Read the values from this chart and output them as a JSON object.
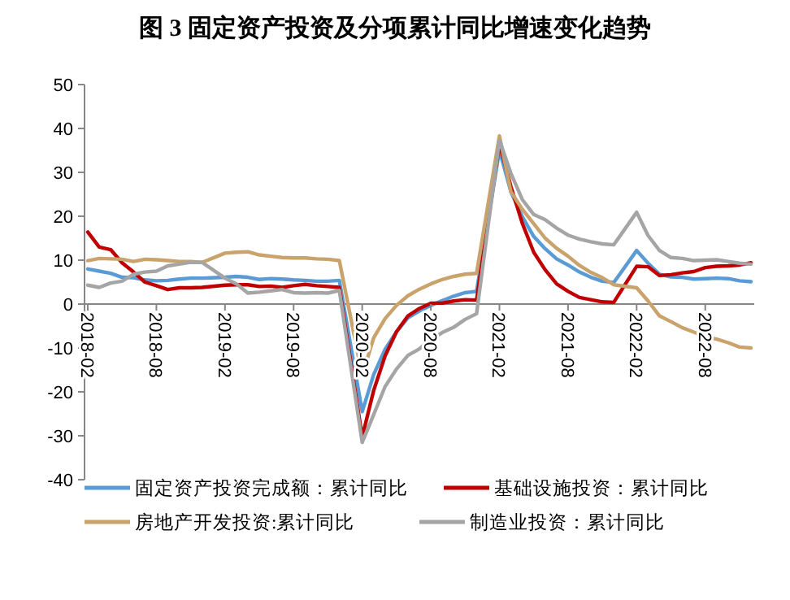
{
  "chart_data": {
    "type": "line",
    "title": "图 3  固定资产投资及分项累计同比增速变化趋势",
    "x": [
      "2018-02",
      "2018-03",
      "2018-04",
      "2018-05",
      "2018-06",
      "2018-07",
      "2018-08",
      "2018-09",
      "2018-10",
      "2018-11",
      "2018-12",
      "2019-02",
      "2019-03",
      "2019-04",
      "2019-05",
      "2019-06",
      "2019-07",
      "2019-08",
      "2019-09",
      "2019-10",
      "2019-11",
      "2019-12",
      "2020-02",
      "2020-03",
      "2020-04",
      "2020-05",
      "2020-06",
      "2020-07",
      "2020-08",
      "2020-09",
      "2020-10",
      "2020-11",
      "2020-12",
      "2021-02",
      "2021-03",
      "2021-04",
      "2021-05",
      "2021-06",
      "2021-07",
      "2021-08",
      "2021-09",
      "2021-10",
      "2021-11",
      "2021-12",
      "2022-02",
      "2022-03",
      "2022-04",
      "2022-05",
      "2022-06",
      "2022-07",
      "2022-08",
      "2022-09",
      "2022-10",
      "2022-11",
      "2022-12"
    ],
    "series": [
      {
        "name": "固定资产投资完成额：累计同比",
        "color": "#5b9bd5",
        "values": [
          8.0,
          7.5,
          7.0,
          6.1,
          6.0,
          5.5,
          5.3,
          5.4,
          5.7,
          5.9,
          5.9,
          6.1,
          6.3,
          6.1,
          5.6,
          5.8,
          5.7,
          5.5,
          5.4,
          5.2,
          5.2,
          5.4,
          -24.5,
          -16.1,
          -10.3,
          -6.3,
          -3.1,
          -1.6,
          -0.3,
          0.8,
          1.8,
          2.6,
          2.9,
          35.0,
          25.6,
          19.9,
          15.4,
          12.6,
          10.3,
          8.9,
          7.3,
          6.1,
          5.2,
          4.9,
          12.2,
          9.3,
          6.8,
          6.2,
          6.1,
          5.7,
          5.8,
          5.9,
          5.8,
          5.3,
          5.1
        ]
      },
      {
        "name": "基础设施投资：累计同比",
        "color": "#c00000",
        "values": [
          16.4,
          13.0,
          12.4,
          9.4,
          7.3,
          5.0,
          4.2,
          3.3,
          3.7,
          3.7,
          3.8,
          4.3,
          4.4,
          4.4,
          4.0,
          4.1,
          3.8,
          4.2,
          4.5,
          4.2,
          4.0,
          3.8,
          -30.3,
          -19.7,
          -11.8,
          -6.3,
          -2.7,
          -1.0,
          0.2,
          0.2,
          0.7,
          1.0,
          0.9,
          36.6,
          26.8,
          18.4,
          11.8,
          7.8,
          4.6,
          2.9,
          1.5,
          1.0,
          0.5,
          0.4,
          8.6,
          8.5,
          6.5,
          6.7,
          7.1,
          7.4,
          8.3,
          8.6,
          8.7,
          8.9,
          9.4
        ]
      },
      {
        "name": "房地产开发投资:累计同比",
        "color": "#c9a36b",
        "values": [
          9.9,
          10.4,
          10.3,
          10.2,
          9.7,
          10.2,
          10.1,
          9.9,
          9.7,
          9.7,
          9.5,
          11.6,
          11.8,
          11.9,
          11.2,
          10.9,
          10.6,
          10.5,
          10.5,
          10.3,
          10.2,
          9.9,
          -16.3,
          -7.7,
          -3.3,
          -0.3,
          1.9,
          3.4,
          4.6,
          5.6,
          6.3,
          6.8,
          7.0,
          38.3,
          25.6,
          21.6,
          18.3,
          15.0,
          12.7,
          10.9,
          8.8,
          7.2,
          6.0,
          4.4,
          3.7,
          0.7,
          -2.7,
          -4.0,
          -5.4,
          -6.4,
          -7.4,
          -8.0,
          -8.8,
          -9.8,
          -10.0
        ]
      },
      {
        "name": "制造业投资：累计同比",
        "color": "#a5a5a5",
        "values": [
          4.3,
          3.8,
          4.8,
          5.2,
          6.8,
          7.3,
          7.5,
          8.7,
          9.1,
          9.5,
          9.5,
          5.9,
          4.6,
          2.5,
          2.7,
          3.0,
          3.3,
          2.6,
          2.5,
          2.6,
          2.5,
          3.1,
          -31.5,
          -25.2,
          -18.8,
          -14.8,
          -11.7,
          -10.2,
          -8.1,
          -6.5,
          -5.3,
          -3.5,
          -2.2,
          37.3,
          29.8,
          23.8,
          20.4,
          19.2,
          17.3,
          15.7,
          14.8,
          14.2,
          13.7,
          13.5,
          20.9,
          15.6,
          12.2,
          10.6,
          10.4,
          9.9,
          10.0,
          10.1,
          9.7,
          9.3,
          9.1
        ]
      }
    ],
    "xlim": [
      "2018-02",
      "2022-12"
    ],
    "xticks": [
      "2018-02",
      "2018-08",
      "2019-02",
      "2019-08",
      "2020-02",
      "2020-08",
      "2021-02",
      "2021-08",
      "2022-02",
      "2022-08"
    ],
    "ylim": [
      -40,
      50
    ],
    "yticks": [
      -40,
      -30,
      -20,
      -10,
      0,
      10,
      20,
      30,
      40,
      50
    ],
    "grid": false,
    "legend": "bottom",
    "marker": "none",
    "line_style": "solid"
  }
}
